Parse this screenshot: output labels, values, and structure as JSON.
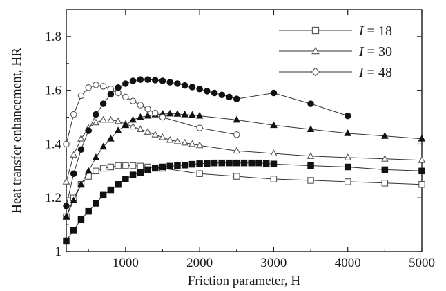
{
  "chart_data": {
    "type": "line",
    "xlabel": "Friction parameter, H",
    "ylabel": "Heat transfer enhancement, HR",
    "xlim": [
      200,
      5000
    ],
    "ylim": [
      1.0,
      1.9
    ],
    "x_ticks": [
      "1000",
      "2000",
      "3000",
      "4000",
      "5000"
    ],
    "y_ticks": [
      "1",
      "1.2",
      "1.4",
      "1.6",
      "1.8"
    ],
    "grid": false,
    "legend_position": "top-right",
    "legend": [
      {
        "name": "I = 18",
        "marker": "square"
      },
      {
        "name": "I = 30",
        "marker": "triangle"
      },
      {
        "name": "I = 48",
        "marker": "diamond"
      }
    ],
    "series": [
      {
        "name": "I = 18 (open)",
        "marker": "square",
        "fill": "open",
        "x": [
          200,
          300,
          400,
          500,
          600,
          700,
          800,
          900,
          1000,
          1100,
          1200,
          1300,
          1400,
          1500,
          2000,
          2500,
          3000,
          3500,
          4000,
          4500,
          5000
        ],
        "y": [
          1.13,
          1.2,
          1.25,
          1.28,
          1.3,
          1.31,
          1.315,
          1.32,
          1.32,
          1.32,
          1.318,
          1.315,
          1.312,
          1.31,
          1.29,
          1.28,
          1.27,
          1.265,
          1.26,
          1.255,
          1.25
        ]
      },
      {
        "name": "I = 18 (filled)",
        "marker": "square",
        "fill": "filled",
        "x": [
          200,
          300,
          400,
          500,
          600,
          700,
          800,
          900,
          1000,
          1100,
          1200,
          1300,
          1400,
          1500,
          1600,
          1700,
          1800,
          1900,
          2000,
          2100,
          2200,
          2300,
          2400,
          2500,
          2600,
          2700,
          2800,
          2900,
          3000,
          3500,
          4000,
          4500,
          5000
        ],
        "y": [
          1.04,
          1.08,
          1.12,
          1.15,
          1.18,
          1.21,
          1.23,
          1.25,
          1.27,
          1.285,
          1.295,
          1.305,
          1.31,
          1.315,
          1.318,
          1.32,
          1.322,
          1.325,
          1.327,
          1.328,
          1.33,
          1.33,
          1.33,
          1.33,
          1.33,
          1.33,
          1.33,
          1.328,
          1.326,
          1.32,
          1.315,
          1.305,
          1.3
        ]
      },
      {
        "name": "I = 30 (open)",
        "marker": "triangle",
        "fill": "open",
        "x": [
          200,
          300,
          400,
          500,
          600,
          700,
          800,
          900,
          1000,
          1100,
          1200,
          1300,
          1400,
          1500,
          1600,
          1700,
          1800,
          1900,
          2000,
          2500,
          3000,
          3500,
          4000,
          4500,
          5000
        ],
        "y": [
          1.26,
          1.36,
          1.42,
          1.46,
          1.48,
          1.49,
          1.49,
          1.485,
          1.475,
          1.465,
          1.455,
          1.445,
          1.435,
          1.425,
          1.415,
          1.41,
          1.405,
          1.4,
          1.395,
          1.375,
          1.365,
          1.355,
          1.35,
          1.345,
          1.34
        ]
      },
      {
        "name": "I = 30 (filled)",
        "marker": "triangle",
        "fill": "filled",
        "x": [
          200,
          300,
          400,
          500,
          600,
          700,
          800,
          900,
          1000,
          1100,
          1200,
          1300,
          1400,
          1500,
          1600,
          1700,
          1800,
          1900,
          2000,
          2500,
          3000,
          3500,
          4000,
          4500,
          5000
        ],
        "y": [
          1.13,
          1.19,
          1.25,
          1.3,
          1.35,
          1.39,
          1.42,
          1.45,
          1.47,
          1.49,
          1.5,
          1.505,
          1.51,
          1.512,
          1.513,
          1.512,
          1.51,
          1.508,
          1.505,
          1.49,
          1.47,
          1.455,
          1.44,
          1.43,
          1.42
        ]
      },
      {
        "name": "I = 48 (open)",
        "marker": "circle",
        "fill": "open",
        "x": [
          200,
          300,
          400,
          500,
          600,
          700,
          800,
          900,
          1000,
          1100,
          1200,
          1300,
          1400,
          1500,
          2000,
          2500
        ],
        "y": [
          1.4,
          1.51,
          1.58,
          1.61,
          1.62,
          1.615,
          1.605,
          1.59,
          1.575,
          1.56,
          1.545,
          1.53,
          1.515,
          1.5,
          1.46,
          1.435
        ]
      },
      {
        "name": "I = 48 (filled)",
        "marker": "circle",
        "fill": "filled",
        "x": [
          200,
          300,
          400,
          500,
          600,
          700,
          800,
          900,
          1000,
          1100,
          1200,
          1300,
          1400,
          1500,
          1600,
          1700,
          1800,
          1900,
          2000,
          2100,
          2200,
          2300,
          2400,
          2500,
          3000,
          3500,
          4000
        ],
        "y": [
          1.17,
          1.29,
          1.38,
          1.45,
          1.51,
          1.55,
          1.585,
          1.61,
          1.625,
          1.635,
          1.64,
          1.64,
          1.638,
          1.635,
          1.63,
          1.625,
          1.618,
          1.612,
          1.605,
          1.597,
          1.59,
          1.583,
          1.575,
          1.568,
          1.59,
          1.55,
          1.505
        ]
      }
    ]
  }
}
